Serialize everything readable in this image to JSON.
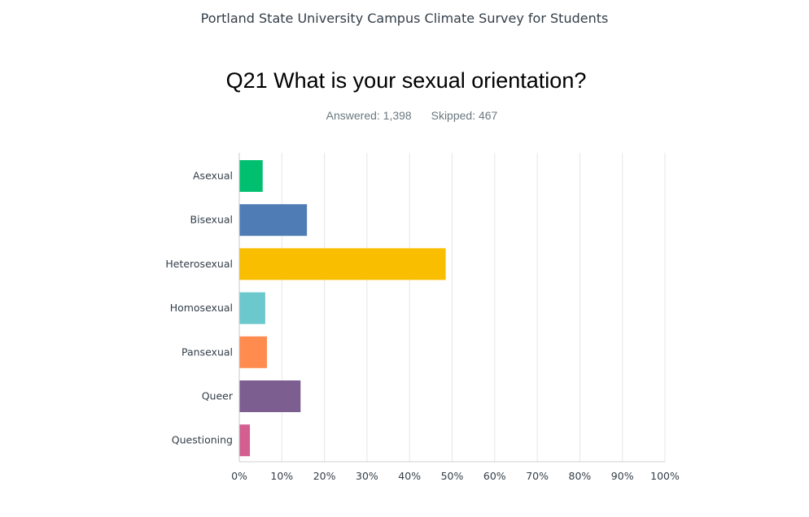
{
  "header": {
    "survey_title": "Portland State University Campus Climate Survey for Students",
    "question": "Q21 What is your sexual orientation?",
    "answered": "Answered: 1,398",
    "skipped": "Skipped: 467"
  },
  "chart_data": {
    "type": "bar",
    "orientation": "horizontal",
    "title": "Q21 What is your sexual orientation?",
    "categories": [
      "Asexual",
      "Bisexual",
      "Heterosexual",
      "Homosexual",
      "Pansexual",
      "Queer",
      "Questioning"
    ],
    "values": [
      5.4,
      15.8,
      48.4,
      6.0,
      6.4,
      14.3,
      2.4
    ],
    "colors": [
      "#00bf6f",
      "#507cb6",
      "#f9be00",
      "#6bc8cd",
      "#ff8b4f",
      "#7d5e90",
      "#d25f90"
    ],
    "xlim": [
      0,
      100
    ],
    "xticks": [
      "0%",
      "10%",
      "20%",
      "30%",
      "40%",
      "50%",
      "60%",
      "70%",
      "80%",
      "90%",
      "100%"
    ],
    "grid": true,
    "xlabel": "",
    "ylabel": ""
  }
}
